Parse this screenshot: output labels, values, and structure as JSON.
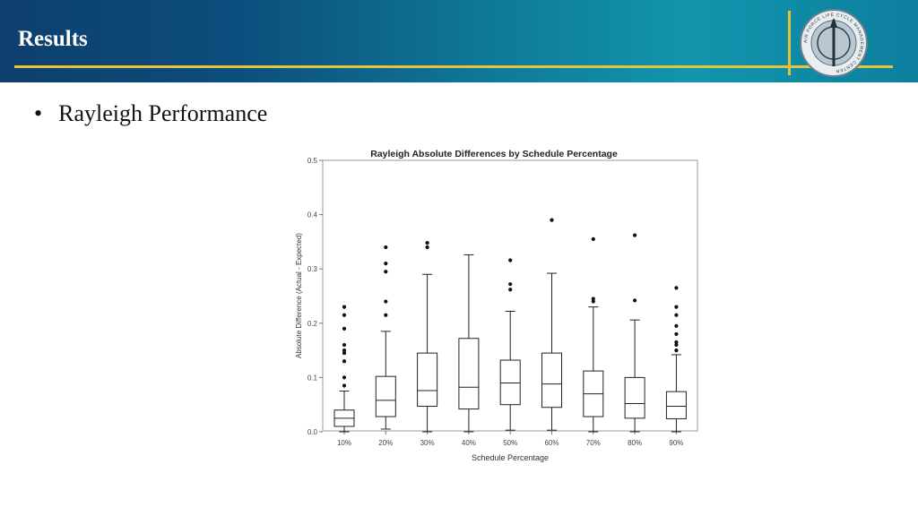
{
  "header": {
    "title": "Results",
    "logo_text": "AIR FORCE LIFE CYCLE MANAGEMENT CENTER"
  },
  "bullets": [
    {
      "text": "Rayleigh Performance"
    }
  ],
  "colors": {
    "accent": "#e7c33a",
    "header_bg": "#0f7b9a"
  },
  "chart_data": {
    "type": "boxplot",
    "title": "Rayleigh Absolute Differences by Schedule Percentage",
    "xlabel": "Schedule Percentage",
    "ylabel": "Absolute Difference (Actual - Expected)",
    "ylim": [
      0,
      0.5
    ],
    "yticks": [
      "0.0",
      "0.1",
      "0.2",
      "0.3",
      "0.4",
      "0.5"
    ],
    "categories": [
      "10%",
      "20%",
      "30%",
      "40%",
      "50%",
      "60%",
      "70%",
      "80%",
      "90%"
    ],
    "boxes": [
      {
        "min": 0.0,
        "q1": 0.01,
        "median": 0.025,
        "q3": 0.04,
        "max": 0.075,
        "outliers": [
          0.085,
          0.1,
          0.13,
          0.145,
          0.15,
          0.16,
          0.19,
          0.215,
          0.23
        ]
      },
      {
        "min": 0.005,
        "q1": 0.028,
        "median": 0.058,
        "q3": 0.102,
        "max": 0.185,
        "outliers": [
          0.215,
          0.24,
          0.295,
          0.31,
          0.34
        ]
      },
      {
        "min": 0.0,
        "q1": 0.047,
        "median": 0.076,
        "q3": 0.145,
        "max": 0.29,
        "outliers": [
          0.34,
          0.348
        ]
      },
      {
        "min": 0.0,
        "q1": 0.042,
        "median": 0.082,
        "q3": 0.172,
        "max": 0.326,
        "outliers": []
      },
      {
        "min": 0.003,
        "q1": 0.05,
        "median": 0.09,
        "q3": 0.132,
        "max": 0.222,
        "outliers": [
          0.262,
          0.272,
          0.316
        ]
      },
      {
        "min": 0.003,
        "q1": 0.045,
        "median": 0.088,
        "q3": 0.145,
        "max": 0.292,
        "outliers": [
          0.39
        ]
      },
      {
        "min": 0.0,
        "q1": 0.028,
        "median": 0.07,
        "q3": 0.112,
        "max": 0.23,
        "outliers": [
          0.24,
          0.245,
          0.355
        ]
      },
      {
        "min": 0.0,
        "q1": 0.025,
        "median": 0.052,
        "q3": 0.1,
        "max": 0.206,
        "outliers": [
          0.242,
          0.362
        ]
      },
      {
        "min": 0.0,
        "q1": 0.024,
        "median": 0.047,
        "q3": 0.074,
        "max": 0.142,
        "outliers": [
          0.15,
          0.16,
          0.165,
          0.18,
          0.195,
          0.215,
          0.23,
          0.265
        ]
      }
    ]
  }
}
